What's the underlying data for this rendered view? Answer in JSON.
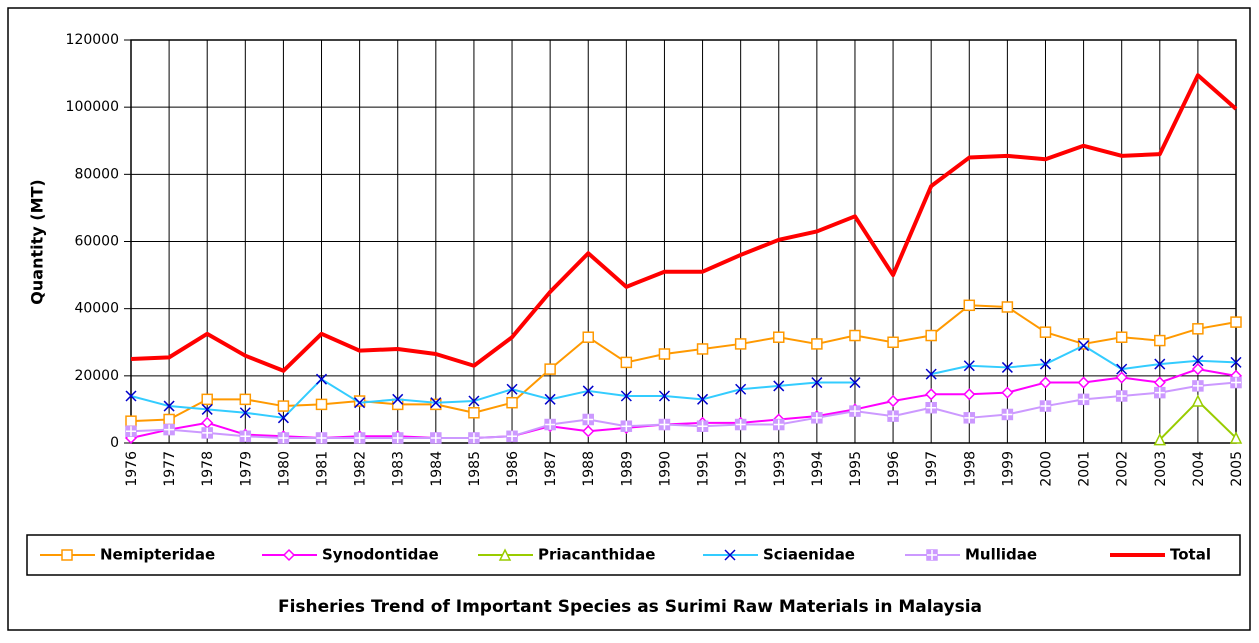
{
  "chart_data": {
    "type": "line",
    "title": "Fisheries Trend of Important Species as Surimi Raw Materials in Malaysia",
    "y_label": "Quantity (MT)",
    "categories": [
      "1976",
      "1977",
      "1978",
      "1979",
      "1980",
      "1981",
      "1982",
      "1983",
      "1984",
      "1985",
      "1986",
      "1987",
      "1988",
      "1989",
      "1990",
      "1991",
      "1992",
      "1993",
      "1994",
      "1995",
      "1996",
      "1997",
      "1998",
      "1999",
      "2000",
      "2001",
      "2002",
      "2003",
      "2004",
      "2005"
    ],
    "series": [
      {
        "name": "Nemipteridae",
        "color": "#ff9900",
        "marker": "square",
        "values": [
          6500,
          7000,
          13000,
          13000,
          11000,
          11500,
          12500,
          11500,
          11500,
          9000,
          12000,
          22000,
          31500,
          24000,
          26500,
          28000,
          29500,
          31500,
          29500,
          32000,
          30000,
          32000,
          41000,
          40500,
          33000,
          29500,
          31500,
          30500,
          34000,
          36000
        ]
      },
      {
        "name": "Synodontidae",
        "color": "#ff00ff",
        "marker": "diamond",
        "values": [
          1500,
          4000,
          6000,
          2500,
          2000,
          1500,
          2000,
          2000,
          1500,
          1500,
          2000,
          5000,
          3500,
          4500,
          5500,
          6000,
          6000,
          7000,
          8000,
          10000,
          12500,
          14500,
          14500,
          15000,
          18000,
          18000,
          19500,
          18000,
          22000,
          20000
        ]
      },
      {
        "name": "Priacanthidae",
        "color": "#99cc00",
        "marker": "triangle",
        "values": [
          null,
          null,
          null,
          null,
          null,
          null,
          null,
          null,
          null,
          null,
          null,
          null,
          null,
          null,
          null,
          null,
          null,
          null,
          null,
          null,
          null,
          null,
          null,
          null,
          null,
          null,
          null,
          1000,
          12500,
          1500
        ]
      },
      {
        "name": "Sciaenidae",
        "color": "#33ccff",
        "marker": "x",
        "values": [
          14000,
          11000,
          10000,
          9000,
          7500,
          19000,
          12000,
          13000,
          12000,
          12500,
          16000,
          13000,
          15500,
          14000,
          14000,
          13000,
          16000,
          17000,
          18000,
          18000,
          null,
          20500,
          23000,
          22500,
          23500,
          29000,
          22000,
          23500,
          24500,
          24000
        ]
      },
      {
        "name": "Mullidae",
        "color": "#cc99ff",
        "marker": "square-plus",
        "values": [
          3500,
          4000,
          3000,
          2000,
          1500,
          1500,
          1500,
          1500,
          1500,
          1500,
          2000,
          5500,
          7000,
          5000,
          5500,
          5000,
          5500,
          5500,
          7500,
          9500,
          8000,
          10500,
          7500,
          8500,
          11000,
          13000,
          14000,
          15000,
          17000,
          18000
        ]
      },
      {
        "name": "Total",
        "color": "#ff0000",
        "marker": "none",
        "values": [
          25000,
          25500,
          32500,
          26000,
          21500,
          32500,
          27500,
          28000,
          26500,
          23000,
          31500,
          45000,
          56500,
          46500,
          51000,
          51000,
          56000,
          60500,
          63000,
          67500,
          50000,
          76500,
          85000,
          85500,
          84500,
          88500,
          85500,
          86000,
          109500,
          99500
        ]
      }
    ],
    "ylim": [
      0,
      120000
    ],
    "yticks": [
      0,
      20000,
      40000,
      60000,
      80000,
      100000,
      120000
    ],
    "grid": true,
    "legend": "bottom"
  }
}
